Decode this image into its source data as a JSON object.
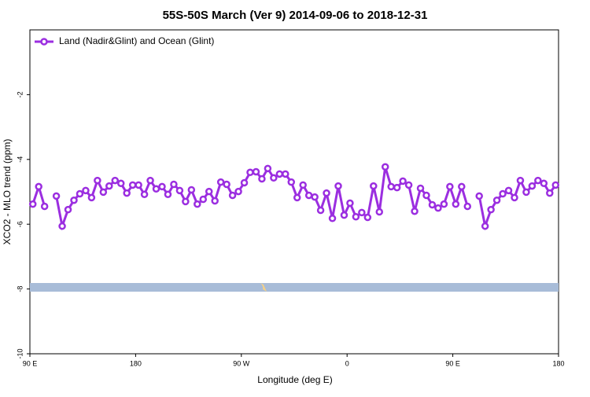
{
  "chart_data": {
    "type": "line",
    "title": "55S-50S March (Ver 9)   2014-09-06 to 2018-12-31",
    "xlabel": "Longitude (deg E)",
    "ylabel": "XCO2 - MLO trend (ppm)",
    "xlim": [
      90,
      540
    ],
    "ylim": [
      -10,
      0
    ],
    "xticks": [
      {
        "value": 90,
        "label": "90 E"
      },
      180,
      {
        "value": 270,
        "label": "90 W"
      },
      {
        "value": 360,
        "label": "0"
      },
      {
        "value": 450,
        "label": "90 E"
      },
      {
        "value": 540,
        "label": "180"
      }
    ],
    "yticks": [
      -10,
      -8,
      -6,
      -4,
      -2
    ],
    "legend": "upper left",
    "x": [
      92.5,
      97.5,
      102.5,
      107.5,
      112.5,
      117.5,
      122.5,
      127.5,
      132.5,
      137.5,
      142.5,
      147.5,
      152.5,
      157.5,
      162.5,
      167.5,
      172.5,
      177.5,
      182.5,
      187.5,
      192.5,
      197.5,
      202.5,
      207.5,
      212.5,
      217.5,
      222.5,
      227.5,
      232.5,
      237.5,
      242.5,
      247.5,
      252.5,
      257.5,
      262.5,
      267.5,
      272.5,
      277.5,
      282.5,
      287.5,
      292.5,
      297.5,
      302.5,
      307.5,
      312.5,
      317.5,
      322.5,
      327.5,
      332.5,
      337.5,
      342.5,
      347.5,
      352.5,
      357.5,
      362.5,
      367.5,
      372.5,
      377.5,
      382.5,
      387.5,
      392.5,
      397.5,
      402.5,
      407.5,
      412.5,
      417.5,
      422.5,
      427.5,
      432.5,
      437.5,
      442.5,
      447.5,
      452.5,
      457.5,
      462.5,
      467.5,
      472.5,
      477.5,
      482.5,
      487.5,
      492.5,
      497.5,
      502.5,
      507.5,
      512.5,
      517.5,
      522.5,
      527.5,
      532.5,
      537.5
    ],
    "series": [
      {
        "name": "Land (Nadir&Glint) and Ocean (Glint)",
        "color": "#9b2ee0",
        "values": [
          -5.38,
          -4.84,
          -5.45,
          null,
          -5.13,
          -6.06,
          -5.55,
          -5.26,
          -5.06,
          -4.96,
          -5.18,
          -4.65,
          -5.01,
          -4.82,
          -4.65,
          -4.74,
          -5.04,
          -4.79,
          -4.79,
          -5.08,
          -4.65,
          -4.91,
          -4.84,
          -5.08,
          -4.77,
          -4.96,
          -5.3,
          -4.94,
          -5.38,
          -5.23,
          -4.99,
          -5.28,
          -4.7,
          -4.77,
          -5.11,
          -4.99,
          -4.72,
          -4.4,
          -4.38,
          -4.6,
          -4.28,
          -4.57,
          -4.45,
          -4.45,
          -4.7,
          -5.18,
          -4.79,
          -5.11,
          -5.16,
          -5.57,
          -5.04,
          -5.82,
          -4.82,
          -5.72,
          -5.35,
          -5.77,
          -5.64,
          -5.79,
          -4.82,
          -5.62,
          -4.23,
          -4.84,
          -4.87,
          -4.67,
          -4.79,
          -5.6,
          -4.89,
          -5.11,
          -5.4,
          -5.5,
          -5.38,
          -4.84,
          -5.38,
          -4.84,
          -5.45,
          null,
          -5.13,
          -6.06,
          -5.55,
          -5.26,
          -5.06,
          -4.96,
          -5.18,
          -4.65,
          -5.01,
          -4.82,
          -4.65,
          -4.74,
          -5.04,
          -4.79
        ]
      }
    ]
  }
}
